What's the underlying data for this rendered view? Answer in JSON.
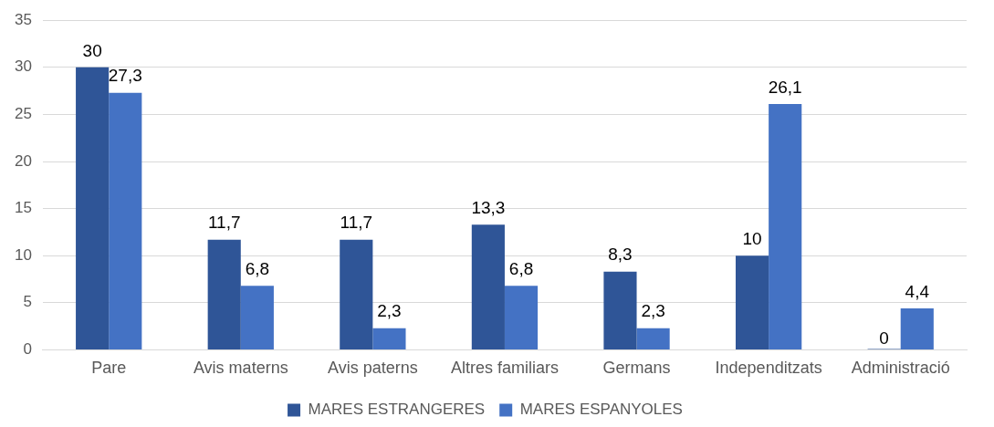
{
  "chart_data": {
    "type": "bar",
    "categories": [
      "Pare",
      "Avis materns",
      "Avis paterns",
      "Altres familiars",
      "Germans",
      "Independitzats",
      "Administració"
    ],
    "series": [
      {
        "name": "MARES ESTRANGERES",
        "color": "#2f5597",
        "values": [
          30,
          11.7,
          11.7,
          13.3,
          8.3,
          10,
          0
        ],
        "value_labels": [
          "30",
          "11,7",
          "11,7",
          "13,3",
          "8,3",
          "10",
          "0"
        ]
      },
      {
        "name": "MARES ESPANYOLES",
        "color": "#4472c4",
        "values": [
          27.3,
          6.8,
          2.3,
          6.8,
          2.3,
          26.1,
          4.4
        ],
        "value_labels": [
          "27,3",
          "6,8",
          "2,3",
          "6,8",
          "2,3",
          "26,1",
          "4,4"
        ]
      }
    ],
    "ylim": [
      0,
      35
    ],
    "yticks": [
      0,
      5,
      10,
      15,
      20,
      25,
      30,
      35
    ],
    "grid": "y",
    "legend": "bottom"
  }
}
